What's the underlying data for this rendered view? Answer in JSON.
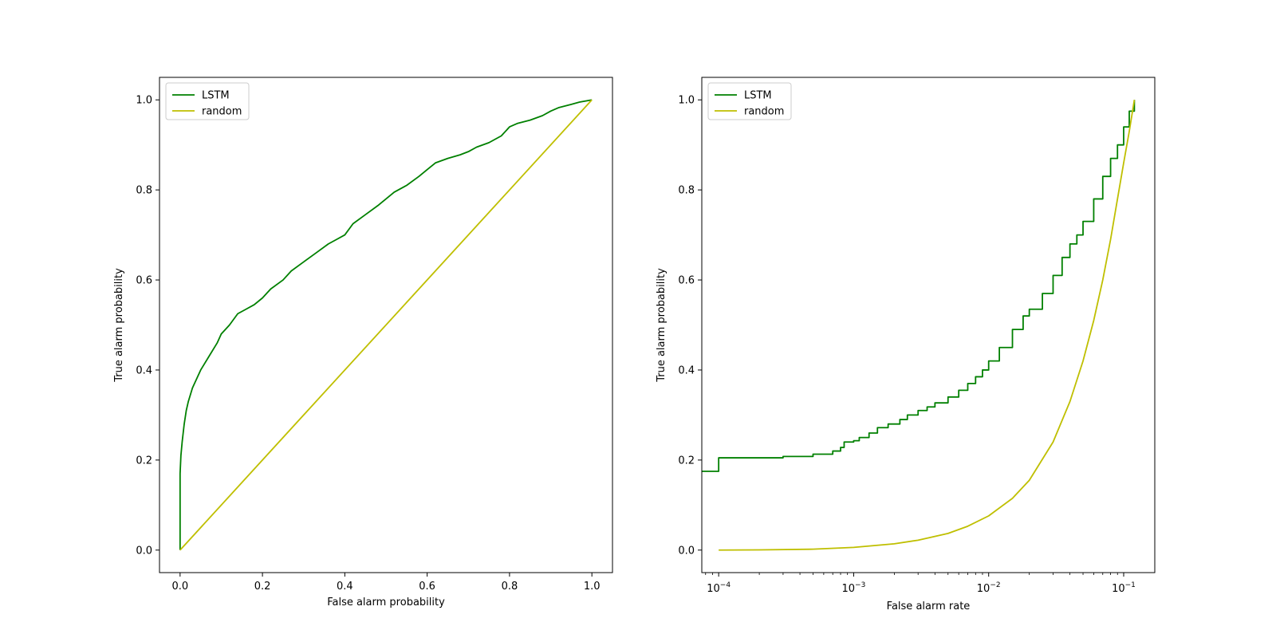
{
  "chart_data": [
    {
      "type": "line",
      "xlabel": "False alarm probability",
      "ylabel": "True alarm probability",
      "xscale": "linear",
      "xlim": [
        -0.05,
        1.05
      ],
      "ylim": [
        -0.05,
        1.05
      ],
      "xticks": [
        0.0,
        0.2,
        0.4,
        0.6,
        0.8,
        1.0
      ],
      "xtick_labels": [
        "0.0",
        "0.2",
        "0.4",
        "0.6",
        "0.8",
        "1.0"
      ],
      "yticks": [
        0.0,
        0.2,
        0.4,
        0.6,
        0.8,
        1.0
      ],
      "ytick_labels": [
        "0.0",
        "0.2",
        "0.4",
        "0.6",
        "0.8",
        "1.0"
      ],
      "grid": false,
      "legend_position": "top-left",
      "series": [
        {
          "name": "LSTM",
          "color": "#008000",
          "x": [
            0,
            0,
            0.002,
            0.005,
            0.01,
            0.015,
            0.02,
            0.03,
            0.04,
            0.05,
            0.07,
            0.09,
            0.1,
            0.12,
            0.14,
            0.16,
            0.18,
            0.2,
            0.22,
            0.25,
            0.27,
            0.3,
            0.33,
            0.36,
            0.38,
            0.4,
            0.42,
            0.45,
            0.48,
            0.5,
            0.52,
            0.55,
            0.58,
            0.6,
            0.62,
            0.65,
            0.68,
            0.7,
            0.72,
            0.75,
            0.78,
            0.8,
            0.82,
            0.85,
            0.88,
            0.9,
            0.92,
            0.95,
            0.97,
            1.0
          ],
          "y": [
            0,
            0.17,
            0.21,
            0.24,
            0.28,
            0.31,
            0.33,
            0.36,
            0.38,
            0.4,
            0.43,
            0.46,
            0.48,
            0.5,
            0.525,
            0.535,
            0.545,
            0.56,
            0.58,
            0.6,
            0.62,
            0.64,
            0.66,
            0.68,
            0.69,
            0.7,
            0.725,
            0.745,
            0.765,
            0.78,
            0.795,
            0.81,
            0.83,
            0.845,
            0.86,
            0.87,
            0.878,
            0.885,
            0.895,
            0.905,
            0.92,
            0.94,
            0.948,
            0.955,
            0.965,
            0.975,
            0.983,
            0.99,
            0.995,
            1.0
          ]
        },
        {
          "name": "random",
          "color": "#bfbf00",
          "x": [
            0,
            1
          ],
          "y": [
            0,
            1
          ]
        }
      ]
    },
    {
      "type": "line",
      "xlabel": "False alarm rate",
      "ylabel": "True alarm probability",
      "xscale": "log",
      "xlim": [
        7.5e-05,
        0.17
      ],
      "ylim": [
        -0.05,
        1.05
      ],
      "xticks": [
        0.0001,
        0.001,
        0.01,
        0.1
      ],
      "xtick_labels": [
        {
          "base": "10",
          "exp": "−4"
        },
        {
          "base": "10",
          "exp": "−3"
        },
        {
          "base": "10",
          "exp": "−2"
        },
        {
          "base": "10",
          "exp": "−1"
        }
      ],
      "yticks": [
        0.0,
        0.2,
        0.4,
        0.6,
        0.8,
        1.0
      ],
      "ytick_labels": [
        "0.0",
        "0.2",
        "0.4",
        "0.6",
        "0.8",
        "1.0"
      ],
      "grid": false,
      "legend_position": "top-left",
      "series": [
        {
          "name": "LSTM",
          "color": "#008000",
          "step": true,
          "x": [
            7.5e-05,
            0.0001,
            0.0001,
            0.0003,
            0.0005,
            0.0007,
            0.0008,
            0.00085,
            0.001,
            0.0011,
            0.0013,
            0.0015,
            0.0018,
            0.0022,
            0.0025,
            0.003,
            0.0035,
            0.004,
            0.005,
            0.006,
            0.007,
            0.008,
            0.009,
            0.01,
            0.012,
            0.015,
            0.018,
            0.02,
            0.025,
            0.03,
            0.035,
            0.04,
            0.045,
            0.05,
            0.06,
            0.07,
            0.08,
            0.09,
            0.1,
            0.11,
            0.12
          ],
          "y": [
            0.175,
            0.175,
            0.205,
            0.208,
            0.213,
            0.22,
            0.228,
            0.24,
            0.243,
            0.25,
            0.26,
            0.272,
            0.28,
            0.29,
            0.3,
            0.31,
            0.318,
            0.327,
            0.34,
            0.355,
            0.37,
            0.385,
            0.4,
            0.42,
            0.45,
            0.49,
            0.52,
            0.535,
            0.57,
            0.61,
            0.65,
            0.68,
            0.7,
            0.73,
            0.78,
            0.83,
            0.87,
            0.9,
            0.94,
            0.975,
            1.0
          ]
        },
        {
          "name": "random",
          "color": "#bfbf00",
          "x": [
            0.0001,
            0.0002,
            0.0005,
            0.001,
            0.002,
            0.003,
            0.005,
            0.007,
            0.01,
            0.015,
            0.02,
            0.03,
            0.04,
            0.05,
            0.06,
            0.07,
            0.08,
            0.09,
            0.1,
            0.11,
            0.12
          ],
          "y": [
            0.0,
            0.0005,
            0.002,
            0.006,
            0.014,
            0.022,
            0.037,
            0.053,
            0.076,
            0.115,
            0.155,
            0.24,
            0.33,
            0.42,
            0.51,
            0.6,
            0.69,
            0.78,
            0.86,
            0.93,
            1.0
          ]
        }
      ]
    }
  ]
}
